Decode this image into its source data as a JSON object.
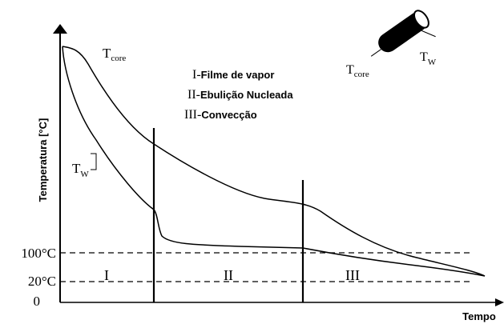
{
  "axes": {
    "y_label": "Temperatura [°C]",
    "x_label": "Tempo",
    "ticks": [
      "100°C",
      "20°C",
      "0"
    ]
  },
  "curves": {
    "core": {
      "main": "T",
      "sub": "core"
    },
    "surface": {
      "main": "T",
      "sub": "W"
    }
  },
  "legend": [
    {
      "numeral": "I-",
      "text": "Filme de vapor"
    },
    {
      "numeral": "II-",
      "text": "Ebulição Nucleada"
    },
    {
      "numeral": "III-",
      "text": "Convecção"
    }
  ],
  "regions": [
    "I",
    "II",
    "III"
  ],
  "icon": {
    "core": {
      "main": "T",
      "sub": "core"
    },
    "surface": {
      "main": "T",
      "sub": "W"
    }
  }
}
